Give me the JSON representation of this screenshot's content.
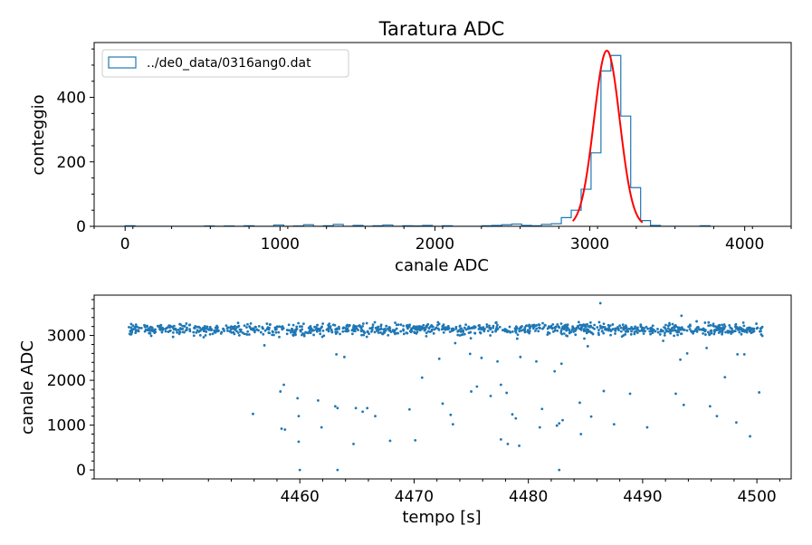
{
  "figure_title": "Taratura ADC",
  "colors": {
    "hist": "#1f77b4",
    "fit": "#ff0000",
    "scatter": "#1f77b4",
    "axis": "#000000"
  },
  "chart_data": [
    {
      "type": "histogram",
      "title": "Taratura ADC",
      "xlabel": "canale ADC",
      "ylabel": "conteggio",
      "xlim": [
        -200,
        4300
      ],
      "ylim": [
        0,
        570
      ],
      "xticks": [
        0,
        1000,
        2000,
        3000,
        4000
      ],
      "xtick_labels": [
        "0",
        "1000",
        "2000",
        "3000",
        "4000"
      ],
      "yticks": [
        0,
        200,
        400
      ],
      "ytick_labels": [
        "0",
        "200",
        "400"
      ],
      "legend": {
        "position": "top-left",
        "label": "../de0_data/0316ang0.dat"
      },
      "bin_width": 64,
      "bins": [
        [
          0,
          2
        ],
        [
          512,
          1
        ],
        [
          640,
          1
        ],
        [
          768,
          2
        ],
        [
          960,
          4
        ],
        [
          1088,
          1
        ],
        [
          1152,
          5
        ],
        [
          1280,
          2
        ],
        [
          1344,
          6
        ],
        [
          1472,
          3
        ],
        [
          1600,
          2
        ],
        [
          1664,
          4
        ],
        [
          1792,
          2
        ],
        [
          1856,
          1
        ],
        [
          1920,
          3
        ],
        [
          2048,
          2
        ],
        [
          2304,
          2
        ],
        [
          2368,
          3
        ],
        [
          2432,
          5
        ],
        [
          2496,
          7
        ],
        [
          2560,
          3
        ],
        [
          2624,
          2
        ],
        [
          2688,
          6
        ],
        [
          2752,
          8
        ],
        [
          2816,
          27
        ],
        [
          2880,
          50
        ],
        [
          2944,
          115
        ],
        [
          3008,
          228
        ],
        [
          3072,
          482
        ],
        [
          3136,
          530
        ],
        [
          3200,
          342
        ],
        [
          3264,
          120
        ],
        [
          3328,
          18
        ],
        [
          3392,
          3
        ],
        [
          3712,
          2
        ]
      ],
      "fit": {
        "type": "gaussian",
        "amplitude": 545,
        "mean": 3110,
        "sigma": 83,
        "x_range": [
          2890,
          3340
        ]
      }
    },
    {
      "type": "scatter",
      "xlabel": "tempo  [s]",
      "ylabel": "canale ADC",
      "xlim": [
        4442,
        4503
      ],
      "ylim": [
        -200,
        3900
      ],
      "xticks": [
        4460,
        4470,
        4480,
        4490,
        4500
      ],
      "xtick_labels": [
        "4460",
        "4470",
        "4480",
        "4490",
        "4500"
      ],
      "yticks": [
        0,
        1000,
        2000,
        3000
      ],
      "ytick_labels": [
        "0",
        "1000",
        "2000",
        "3000"
      ],
      "main_band": {
        "x_range": [
          4445,
          4500.5
        ],
        "center": 3140,
        "spread": 120,
        "count": 1100
      },
      "outliers": [
        [
          4455.9,
          1250
        ],
        [
          4456.9,
          2780
        ],
        [
          4458.3,
          1750
        ],
        [
          4458.6,
          1900
        ],
        [
          4458.4,
          920
        ],
        [
          4458.7,
          900
        ],
        [
          4459.8,
          1600
        ],
        [
          4459.9,
          1200
        ],
        [
          4459.9,
          630
        ],
        [
          4460.0,
          0
        ],
        [
          4461.6,
          1550
        ],
        [
          4461.9,
          950
        ],
        [
          4463.1,
          1420
        ],
        [
          4463.2,
          2580
        ],
        [
          4463.3,
          0
        ],
        [
          4463.3,
          1380
        ],
        [
          4463.9,
          2520
        ],
        [
          4464.7,
          580
        ],
        [
          4464.9,
          1380
        ],
        [
          4465.5,
          1300
        ],
        [
          4465.9,
          1380
        ],
        [
          4466.6,
          1200
        ],
        [
          4467.9,
          650
        ],
        [
          4469.6,
          1350
        ],
        [
          4470.1,
          660
        ],
        [
          4470.7,
          2060
        ],
        [
          4472.2,
          2480
        ],
        [
          4472.5,
          1480
        ],
        [
          4473.2,
          1230
        ],
        [
          4473.4,
          1020
        ],
        [
          4473.6,
          2830
        ],
        [
          4474.9,
          2590
        ],
        [
          4475.0,
          1750
        ],
        [
          4475.5,
          1860
        ],
        [
          4475.9,
          2500
        ],
        [
          4476.7,
          1650
        ],
        [
          4477.3,
          2420
        ],
        [
          4477.6,
          1900
        ],
        [
          4477.6,
          680
        ],
        [
          4478.1,
          1720
        ],
        [
          4478.2,
          580
        ],
        [
          4478.6,
          1240
        ],
        [
          4478.9,
          1150
        ],
        [
          4479.2,
          540
        ],
        [
          4479.3,
          2520
        ],
        [
          4480.7,
          2420
        ],
        [
          4481.0,
          950
        ],
        [
          4481.2,
          1360
        ],
        [
          4482.3,
          2200
        ],
        [
          4482.5,
          990
        ],
        [
          4482.7,
          0
        ],
        [
          4482.7,
          1040
        ],
        [
          4482.9,
          2370
        ],
        [
          4483.0,
          1110
        ],
        [
          4484.5,
          1500
        ],
        [
          4484.6,
          800
        ],
        [
          4484.9,
          2930
        ],
        [
          4485.2,
          2760
        ],
        [
          4485.5,
          1190
        ],
        [
          4486.3,
          3720
        ],
        [
          4486.6,
          1760
        ],
        [
          4487.5,
          1020
        ],
        [
          4488.9,
          1700
        ],
        [
          4490.4,
          950
        ],
        [
          4491.8,
          2880
        ],
        [
          4492.9,
          1700
        ],
        [
          4493.3,
          2460
        ],
        [
          4493.4,
          3440
        ],
        [
          4493.6,
          1450
        ],
        [
          4493.9,
          2600
        ],
        [
          4495.6,
          2720
        ],
        [
          4495.9,
          1420
        ],
        [
          4496.5,
          1200
        ],
        [
          4497.2,
          2070
        ],
        [
          4498.2,
          1060
        ],
        [
          4498.3,
          2580
        ],
        [
          4498.9,
          2580
        ],
        [
          4499.4,
          750
        ],
        [
          4500.2,
          1730
        ]
      ]
    }
  ]
}
